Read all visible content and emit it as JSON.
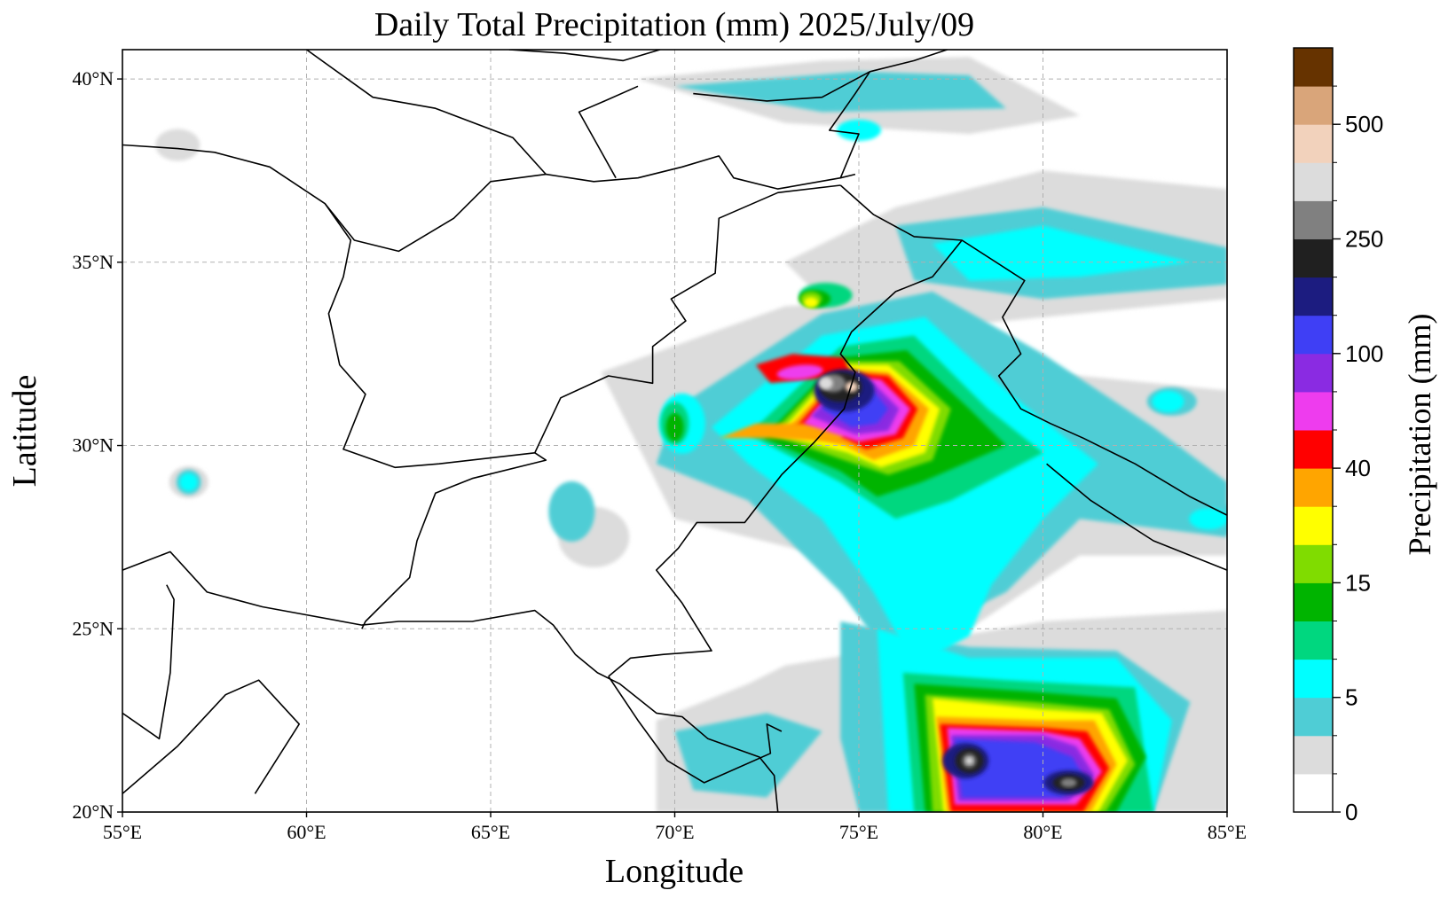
{
  "chart_data": {
    "type": "heatmap",
    "title": "Daily Total Precipitation (mm)  2025/July/09",
    "xlabel": "Longitude",
    "ylabel": "Latitude",
    "xlim": [
      55,
      85
    ],
    "ylim": [
      20,
      40.8
    ],
    "grid": true,
    "x_ticks": [
      {
        "value": 55,
        "label": "55°E"
      },
      {
        "value": 60,
        "label": "60°E"
      },
      {
        "value": 65,
        "label": "65°E"
      },
      {
        "value": 70,
        "label": "70°E"
      },
      {
        "value": 75,
        "label": "75°E"
      },
      {
        "value": 80,
        "label": "80°E"
      },
      {
        "value": 85,
        "label": "85°E"
      }
    ],
    "y_ticks": [
      {
        "value": 20,
        "label": "20°N"
      },
      {
        "value": 25,
        "label": "25°N"
      },
      {
        "value": 30,
        "label": "30°N"
      },
      {
        "value": 35,
        "label": "35°N"
      },
      {
        "value": 40,
        "label": "40°N"
      }
    ],
    "colorbar": {
      "label": "Precipitation (mm)",
      "levels": [
        0,
        1,
        3,
        5,
        7,
        10,
        15,
        20,
        30,
        40,
        50,
        70,
        100,
        150,
        200,
        250,
        300,
        400,
        500,
        600
      ],
      "colors": [
        "#ffffff",
        "#dcdcdc",
        "#4fcdd5",
        "#00ffff",
        "#00d77f",
        "#00b400",
        "#80dc00",
        "#ffff00",
        "#ffa500",
        "#ff0000",
        "#ee3cee",
        "#8a2be2",
        "#3f3ff5",
        "#1c1c80",
        "#202020",
        "#808080",
        "#dcdcdc",
        "#f2d2bc",
        "#d9a57a",
        "#663300"
      ],
      "tick_labels": [
        {
          "value": 0,
          "label": "0"
        },
        {
          "value": 5,
          "label": "5"
        },
        {
          "value": 15,
          "label": "15"
        },
        {
          "value": 40,
          "label": "40"
        },
        {
          "value": 100,
          "label": "100"
        },
        {
          "value": 250,
          "label": "250"
        },
        {
          "value": 500,
          "label": "500"
        }
      ]
    },
    "precipitation_features": [
      {
        "lon": 74.5,
        "lat": 31.6,
        "peak_mm": 400
      },
      {
        "lon": 78.0,
        "lat": 21.4,
        "peak_mm": 300
      },
      {
        "lon": 80.7,
        "lat": 20.8,
        "peak_mm": 300
      }
    ]
  }
}
